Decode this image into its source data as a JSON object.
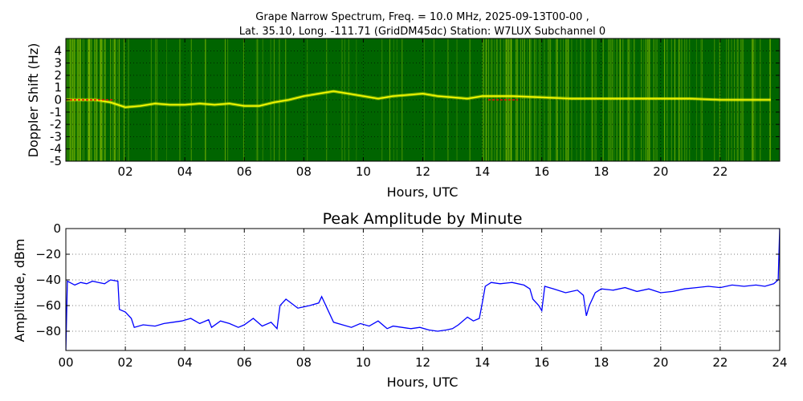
{
  "title": {
    "line1": "Grape Narrow Spectrum, Freq. = 10.0 MHz, 2025-09-13T00-00 ,",
    "line2": "Lat.  35.10, Long. -111.71 (GridDM45dc) Station: W7LUX Subchannel 0"
  },
  "chart_data": [
    {
      "type": "heatmap",
      "title": "",
      "xlabel": "Hours, UTC",
      "ylabel": "Doppler Shift (Hz)",
      "xlim": [
        0,
        24
      ],
      "ylim": [
        -5,
        5
      ],
      "x_ticks": [
        2,
        4,
        6,
        8,
        10,
        12,
        14,
        16,
        18,
        20,
        22
      ],
      "x_tick_labels": [
        "02",
        "04",
        "06",
        "08",
        "10",
        "12",
        "14",
        "16",
        "18",
        "20",
        "22"
      ],
      "y_ticks": [
        4,
        3,
        2,
        1,
        0,
        -1,
        -2,
        -3,
        -4,
        -5
      ],
      "y_tick_labels": [
        "4",
        "3",
        "2",
        "1",
        "0",
        "-1",
        "-2",
        "-3",
        "-4",
        "-5"
      ],
      "grid": true,
      "colors": {
        "background": "#006400",
        "noise": "#7fb800",
        "trace": "#ffff00",
        "peak": "#ff0000"
      },
      "trace": {
        "name": "",
        "x": [
          0.0,
          0.5,
          1.0,
          1.5,
          1.75,
          2.0,
          2.5,
          3.0,
          3.5,
          4.0,
          4.5,
          5.0,
          5.5,
          6.0,
          6.5,
          7.0,
          7.5,
          8.0,
          8.5,
          9.0,
          9.5,
          10.0,
          10.5,
          11.0,
          11.5,
          12.0,
          12.5,
          13.0,
          13.5,
          14.0,
          15.0,
          16.0,
          17.0,
          18.0,
          19.0,
          20.0,
          21.0,
          22.0,
          23.0,
          23.7
        ],
        "y": [
          0.0,
          0.0,
          0.0,
          -0.2,
          -0.4,
          -0.6,
          -0.5,
          -0.3,
          -0.4,
          -0.4,
          -0.3,
          -0.4,
          -0.3,
          -0.5,
          -0.5,
          -0.2,
          0.0,
          0.3,
          0.5,
          0.7,
          0.5,
          0.3,
          0.1,
          0.3,
          0.4,
          0.5,
          0.3,
          0.2,
          0.1,
          0.3,
          0.3,
          0.2,
          0.1,
          0.1,
          0.1,
          0.1,
          0.1,
          0.0,
          0.0,
          0.0
        ]
      }
    },
    {
      "type": "line",
      "title": "Peak Amplitude by Minute",
      "xlabel": "Hours, UTC",
      "ylabel": "Amplitude, dBm",
      "xlim": [
        0,
        24
      ],
      "ylim": [
        -95,
        0
      ],
      "x_ticks": [
        0,
        2,
        4,
        6,
        8,
        10,
        12,
        14,
        16,
        18,
        20,
        22,
        24
      ],
      "x_tick_labels": [
        "00",
        "02",
        "04",
        "06",
        "08",
        "10",
        "12",
        "14",
        "16",
        "18",
        "20",
        "22",
        "24"
      ],
      "y_ticks": [
        0,
        -20,
        -40,
        -60,
        -80
      ],
      "y_tick_labels": [
        "0",
        "−20",
        "−40",
        "−60",
        "−80"
      ],
      "grid": true,
      "line_color": "#0000ff",
      "series": [
        {
          "name": "",
          "x": [
            0.0,
            0.05,
            0.3,
            0.5,
            0.7,
            0.9,
            1.1,
            1.3,
            1.5,
            1.75,
            1.8,
            2.0,
            2.2,
            2.3,
            2.6,
            3.0,
            3.3,
            3.6,
            3.9,
            4.2,
            4.5,
            4.8,
            4.9,
            5.2,
            5.5,
            5.8,
            6.0,
            6.3,
            6.6,
            6.9,
            7.1,
            7.2,
            7.4,
            7.8,
            8.2,
            8.5,
            8.6,
            8.8,
            9.0,
            9.3,
            9.6,
            9.9,
            10.2,
            10.5,
            10.8,
            11.0,
            11.3,
            11.6,
            11.9,
            12.2,
            12.5,
            12.8,
            13.0,
            13.2,
            13.5,
            13.7,
            13.9,
            14.0,
            14.1,
            14.3,
            14.6,
            15.0,
            15.4,
            15.6,
            15.7,
            15.9,
            16.0,
            16.1,
            16.4,
            16.8,
            17.2,
            17.4,
            17.5,
            17.6,
            17.8,
            18.0,
            18.4,
            18.8,
            19.2,
            19.6,
            20.0,
            20.4,
            20.8,
            21.2,
            21.6,
            22.0,
            22.4,
            22.8,
            23.2,
            23.5,
            23.8,
            23.95,
            24.0
          ],
          "y": [
            -95,
            -41,
            -44,
            -42,
            -43,
            -41,
            -42,
            -43,
            -40,
            -41,
            -63,
            -65,
            -70,
            -77,
            -75,
            -76,
            -74,
            -73,
            -72,
            -70,
            -74,
            -71,
            -77,
            -72,
            -74,
            -77,
            -75,
            -70,
            -76,
            -73,
            -78,
            -60,
            -55,
            -62,
            -60,
            -58,
            -53,
            -63,
            -73,
            -75,
            -77,
            -74,
            -76,
            -72,
            -78,
            -76,
            -77,
            -78,
            -77,
            -79,
            -80,
            -79,
            -78,
            -75,
            -69,
            -72,
            -70,
            -58,
            -45,
            -42,
            -43,
            -42,
            -44,
            -47,
            -55,
            -60,
            -64,
            -45,
            -47,
            -50,
            -48,
            -52,
            -68,
            -60,
            -50,
            -47,
            -48,
            -46,
            -49,
            -47,
            -50,
            -49,
            -47,
            -46,
            -45,
            -46,
            -44,
            -45,
            -44,
            -45,
            -43,
            -40,
            0
          ]
        }
      ]
    }
  ]
}
